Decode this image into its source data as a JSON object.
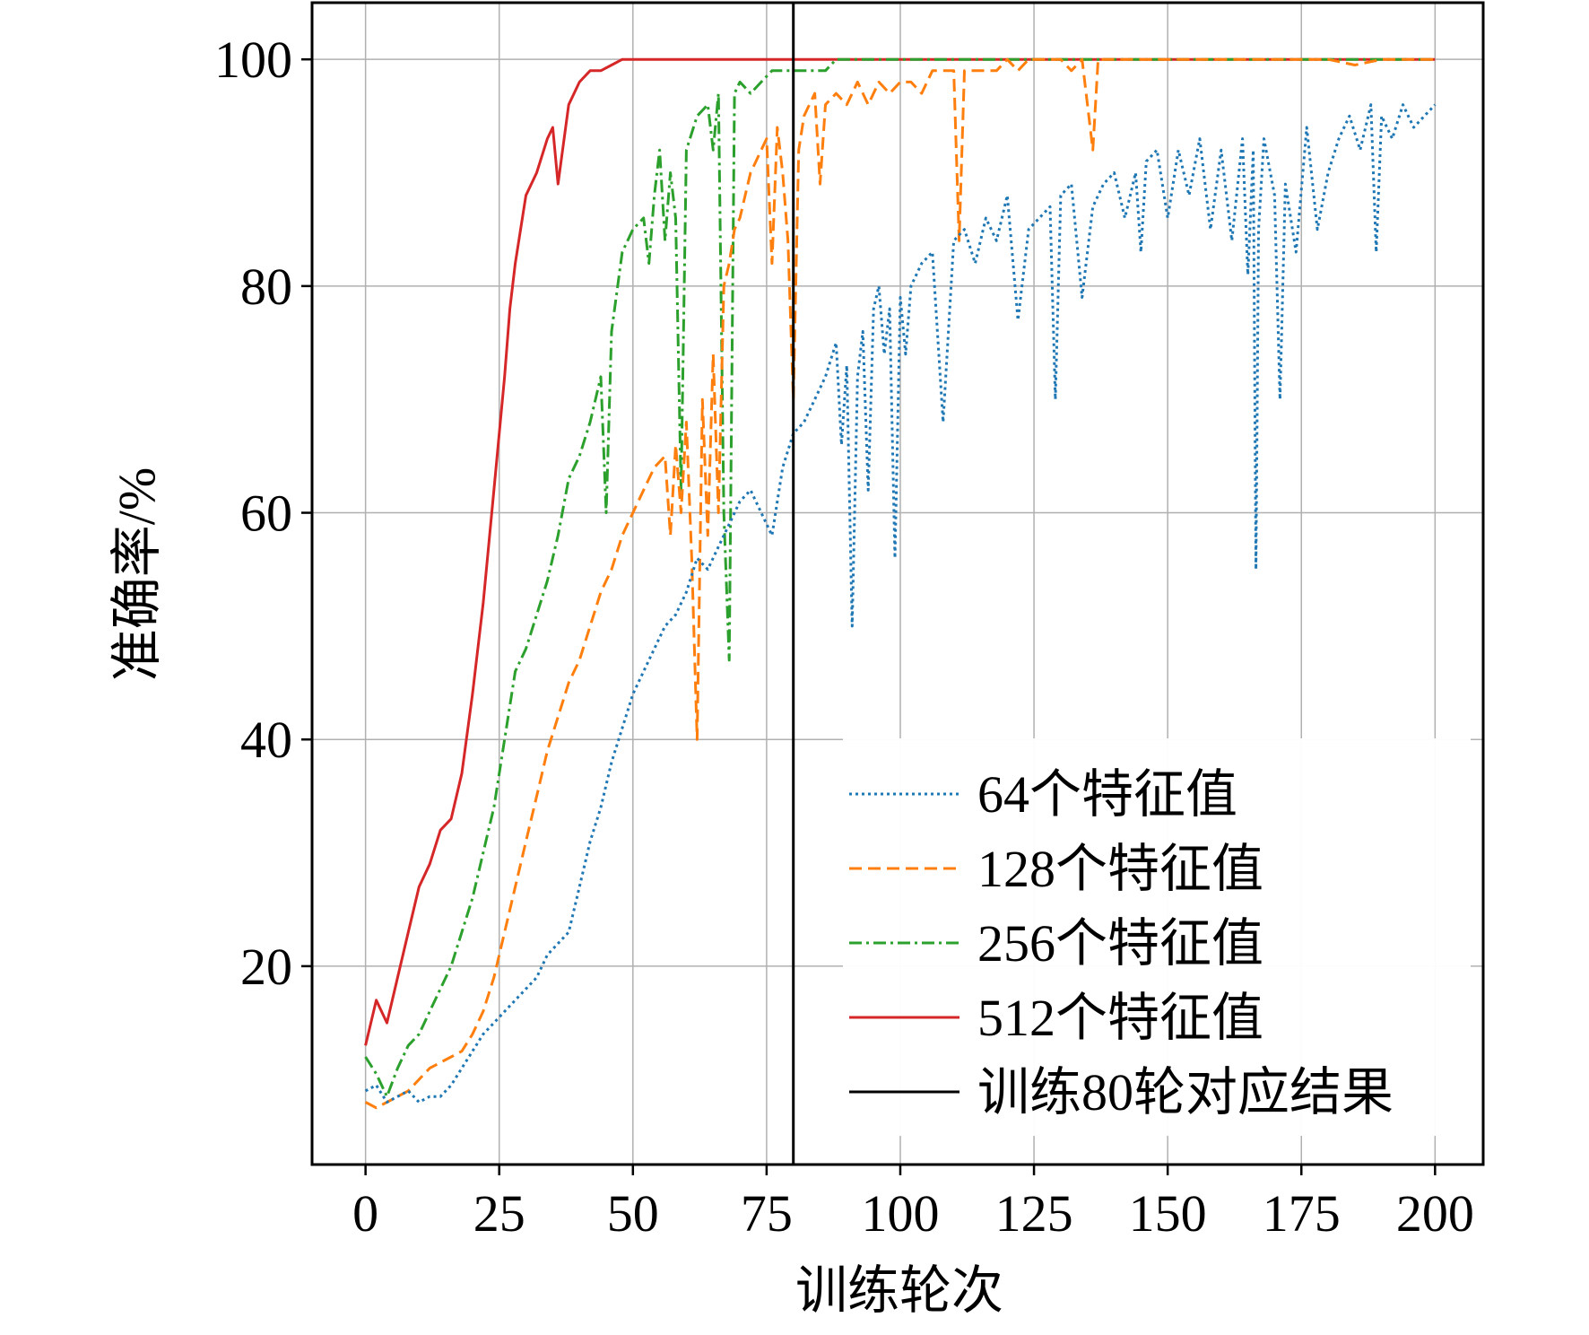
{
  "chart_data": {
    "type": "line",
    "xlabel": "训练轮次",
    "ylabel": "准确率/%",
    "xlim": [
      -10,
      209
    ],
    "ylim": [
      2.5,
      105
    ],
    "xticks": [
      0,
      25,
      50,
      75,
      100,
      125,
      150,
      175,
      200
    ],
    "yticks": [
      20,
      40,
      60,
      80,
      100
    ],
    "xtick_labels": [
      "0",
      "25",
      "50",
      "75",
      "100",
      "125",
      "150",
      "175",
      "200"
    ],
    "ytick_labels": [
      "20",
      "40",
      "60",
      "80",
      "100"
    ],
    "grid": true,
    "legend_position": "bottom-right",
    "vline": {
      "x": 80,
      "label": "训练80轮对应结果",
      "color": "#000000"
    },
    "series": [
      {
        "name": "64个特征值",
        "color": "#1f77b4",
        "dash": "dotted",
        "points": [
          [
            0,
            9
          ],
          [
            2,
            9.5
          ],
          [
            4,
            8
          ],
          [
            6,
            8.5
          ],
          [
            8,
            9
          ],
          [
            10,
            8
          ],
          [
            12,
            8.5
          ],
          [
            14,
            8.5
          ],
          [
            16,
            9.5
          ],
          [
            18,
            11
          ],
          [
            20,
            12.5
          ],
          [
            22,
            14
          ],
          [
            24,
            15
          ],
          [
            26,
            16
          ],
          [
            28,
            17
          ],
          [
            30,
            18
          ],
          [
            32,
            19
          ],
          [
            34,
            21
          ],
          [
            36,
            22
          ],
          [
            38,
            23
          ],
          [
            40,
            27
          ],
          [
            42,
            31
          ],
          [
            44,
            34
          ],
          [
            46,
            38
          ],
          [
            48,
            41
          ],
          [
            50,
            44
          ],
          [
            52,
            46
          ],
          [
            54,
            48
          ],
          [
            56,
            50
          ],
          [
            58,
            51
          ],
          [
            60,
            53
          ],
          [
            62,
            56
          ],
          [
            64,
            55
          ],
          [
            66,
            57
          ],
          [
            68,
            59
          ],
          [
            70,
            61
          ],
          [
            72,
            62
          ],
          [
            74,
            60
          ],
          [
            76,
            58
          ],
          [
            78,
            64
          ],
          [
            80,
            67
          ],
          [
            82,
            68
          ],
          [
            84,
            70
          ],
          [
            86,
            72
          ],
          [
            88,
            75
          ],
          [
            89,
            66
          ],
          [
            90,
            73
          ],
          [
            91,
            50
          ],
          [
            92,
            72
          ],
          [
            93,
            76
          ],
          [
            94,
            62
          ],
          [
            95,
            78
          ],
          [
            96,
            80
          ],
          [
            97,
            74
          ],
          [
            98,
            78
          ],
          [
            99,
            56
          ],
          [
            100,
            79
          ],
          [
            101,
            74
          ],
          [
            102,
            80
          ],
          [
            104,
            82
          ],
          [
            106,
            83
          ],
          [
            108,
            68
          ],
          [
            110,
            84
          ],
          [
            112,
            85
          ],
          [
            114,
            82
          ],
          [
            116,
            86
          ],
          [
            118,
            84
          ],
          [
            120,
            88
          ],
          [
            122,
            77
          ],
          [
            124,
            85
          ],
          [
            126,
            86
          ],
          [
            128,
            87
          ],
          [
            129,
            70
          ],
          [
            130,
            88
          ],
          [
            132,
            89
          ],
          [
            134,
            79
          ],
          [
            136,
            87
          ],
          [
            138,
            89
          ],
          [
            140,
            90
          ],
          [
            142,
            86
          ],
          [
            144,
            90
          ],
          [
            145,
            83
          ],
          [
            146,
            91
          ],
          [
            148,
            92
          ],
          [
            150,
            86
          ],
          [
            152,
            92
          ],
          [
            154,
            88
          ],
          [
            156,
            93
          ],
          [
            158,
            85
          ],
          [
            160,
            92
          ],
          [
            162,
            84
          ],
          [
            164,
            93
          ],
          [
            165,
            81
          ],
          [
            166,
            92
          ],
          [
            166.5,
            55
          ],
          [
            167,
            85
          ],
          [
            168,
            93
          ],
          [
            170,
            88
          ],
          [
            171,
            70
          ],
          [
            172,
            89
          ],
          [
            174,
            83
          ],
          [
            176,
            94
          ],
          [
            178,
            85
          ],
          [
            180,
            90
          ],
          [
            182,
            93
          ],
          [
            184,
            95
          ],
          [
            186,
            92
          ],
          [
            188,
            96
          ],
          [
            189,
            83
          ],
          [
            190,
            95
          ],
          [
            192,
            93
          ],
          [
            194,
            96
          ],
          [
            196,
            94
          ],
          [
            198,
            95
          ],
          [
            200,
            96
          ]
        ]
      },
      {
        "name": "128个特征值",
        "color": "#ff7f0e",
        "dash": "dashed",
        "points": [
          [
            0,
            8
          ],
          [
            2,
            7.5
          ],
          [
            4,
            8
          ],
          [
            6,
            8.5
          ],
          [
            8,
            9
          ],
          [
            10,
            10
          ],
          [
            12,
            11
          ],
          [
            14,
            11.5
          ],
          [
            16,
            12
          ],
          [
            18,
            12.5
          ],
          [
            20,
            14
          ],
          [
            22,
            16
          ],
          [
            24,
            19
          ],
          [
            26,
            23
          ],
          [
            28,
            27
          ],
          [
            30,
            31
          ],
          [
            32,
            35
          ],
          [
            34,
            39
          ],
          [
            36,
            42
          ],
          [
            38,
            45
          ],
          [
            40,
            47
          ],
          [
            42,
            50
          ],
          [
            44,
            53
          ],
          [
            46,
            55
          ],
          [
            48,
            58
          ],
          [
            50,
            60
          ],
          [
            52,
            62
          ],
          [
            54,
            64
          ],
          [
            56,
            65
          ],
          [
            57,
            58
          ],
          [
            58,
            66
          ],
          [
            59,
            60
          ],
          [
            60,
            68
          ],
          [
            61,
            56
          ],
          [
            62,
            40
          ],
          [
            63,
            70
          ],
          [
            64,
            58
          ],
          [
            65,
            74
          ],
          [
            66,
            60
          ],
          [
            67,
            80
          ],
          [
            68,
            82
          ],
          [
            69,
            85
          ],
          [
            70,
            86
          ],
          [
            71,
            88
          ],
          [
            72,
            90
          ],
          [
            73,
            91
          ],
          [
            74,
            92
          ],
          [
            75,
            93
          ],
          [
            76,
            82
          ],
          [
            77,
            94
          ],
          [
            78,
            90
          ],
          [
            79,
            84
          ],
          [
            80,
            70
          ],
          [
            81,
            92
          ],
          [
            82,
            95
          ],
          [
            83,
            96
          ],
          [
            84,
            97
          ],
          [
            85,
            89
          ],
          [
            86,
            96
          ],
          [
            88,
            97
          ],
          [
            90,
            96
          ],
          [
            92,
            98
          ],
          [
            94,
            96
          ],
          [
            96,
            98
          ],
          [
            98,
            97
          ],
          [
            100,
            98
          ],
          [
            102,
            98
          ],
          [
            104,
            97
          ],
          [
            106,
            99
          ],
          [
            108,
            99
          ],
          [
            110,
            99
          ],
          [
            111,
            84
          ],
          [
            112,
            99
          ],
          [
            114,
            99
          ],
          [
            116,
            99
          ],
          [
            118,
            99
          ],
          [
            120,
            100
          ],
          [
            122,
            99
          ],
          [
            124,
            100
          ],
          [
            126,
            100
          ],
          [
            128,
            100
          ],
          [
            130,
            100
          ],
          [
            132,
            99
          ],
          [
            134,
            100
          ],
          [
            136,
            92
          ],
          [
            137,
            100
          ],
          [
            140,
            100
          ],
          [
            145,
            100
          ],
          [
            150,
            100
          ],
          [
            155,
            100
          ],
          [
            160,
            100
          ],
          [
            165,
            100
          ],
          [
            170,
            100
          ],
          [
            175,
            100
          ],
          [
            180,
            100
          ],
          [
            185,
            99.5
          ],
          [
            190,
            100
          ],
          [
            195,
            100
          ],
          [
            200,
            100
          ]
        ]
      },
      {
        "name": "256个特征值",
        "color": "#2ca02c",
        "dash": "dashdot",
        "points": [
          [
            0,
            12
          ],
          [
            2,
            10.5
          ],
          [
            4,
            8.5
          ],
          [
            6,
            11
          ],
          [
            8,
            13
          ],
          [
            10,
            14
          ],
          [
            12,
            16
          ],
          [
            14,
            18
          ],
          [
            16,
            20
          ],
          [
            18,
            23
          ],
          [
            20,
            26
          ],
          [
            22,
            30
          ],
          [
            24,
            34
          ],
          [
            26,
            40
          ],
          [
            28,
            46
          ],
          [
            30,
            48
          ],
          [
            32,
            51
          ],
          [
            34,
            54
          ],
          [
            36,
            58
          ],
          [
            38,
            63
          ],
          [
            40,
            65
          ],
          [
            42,
            68
          ],
          [
            44,
            72
          ],
          [
            45,
            60
          ],
          [
            46,
            76
          ],
          [
            48,
            83
          ],
          [
            50,
            85
          ],
          [
            52,
            86
          ],
          [
            53,
            82
          ],
          [
            54,
            88
          ],
          [
            55,
            92
          ],
          [
            56,
            84
          ],
          [
            57,
            90
          ],
          [
            58,
            86
          ],
          [
            59,
            62
          ],
          [
            60,
            92
          ],
          [
            62,
            95
          ],
          [
            64,
            96
          ],
          [
            65,
            92
          ],
          [
            66,
            97
          ],
          [
            67,
            60
          ],
          [
            68,
            47
          ],
          [
            69,
            97
          ],
          [
            70,
            98
          ],
          [
            72,
            97
          ],
          [
            74,
            98
          ],
          [
            76,
            99
          ],
          [
            78,
            99
          ],
          [
            80,
            99
          ],
          [
            82,
            99
          ],
          [
            84,
            99
          ],
          [
            86,
            99
          ],
          [
            88,
            100
          ],
          [
            90,
            100
          ],
          [
            95,
            100
          ],
          [
            100,
            100
          ],
          [
            110,
            100
          ],
          [
            120,
            100
          ],
          [
            130,
            100
          ],
          [
            140,
            100
          ],
          [
            150,
            100
          ],
          [
            160,
            100
          ],
          [
            170,
            100
          ],
          [
            180,
            100
          ],
          [
            190,
            100
          ],
          [
            200,
            100
          ]
        ]
      },
      {
        "name": "512个特征值",
        "color": "#d62728",
        "dash": "solid",
        "points": [
          [
            0,
            13
          ],
          [
            2,
            17
          ],
          [
            4,
            15
          ],
          [
            6,
            19
          ],
          [
            8,
            23
          ],
          [
            10,
            27
          ],
          [
            12,
            29
          ],
          [
            14,
            32
          ],
          [
            16,
            33
          ],
          [
            18,
            37
          ],
          [
            20,
            44
          ],
          [
            22,
            52
          ],
          [
            24,
            62
          ],
          [
            26,
            72
          ],
          [
            27,
            78
          ],
          [
            28,
            82
          ],
          [
            30,
            88
          ],
          [
            32,
            90
          ],
          [
            34,
            93
          ],
          [
            35,
            94
          ],
          [
            36,
            89
          ],
          [
            38,
            96
          ],
          [
            40,
            98
          ],
          [
            42,
            99
          ],
          [
            44,
            99
          ],
          [
            46,
            99.5
          ],
          [
            48,
            100
          ],
          [
            50,
            100
          ],
          [
            55,
            100
          ],
          [
            60,
            100
          ],
          [
            65,
            100
          ],
          [
            70,
            100
          ],
          [
            80,
            100
          ],
          [
            90,
            100
          ],
          [
            100,
            100
          ],
          [
            120,
            100
          ],
          [
            140,
            100
          ],
          [
            160,
            100
          ],
          [
            180,
            100
          ],
          [
            200,
            100
          ]
        ]
      }
    ]
  }
}
